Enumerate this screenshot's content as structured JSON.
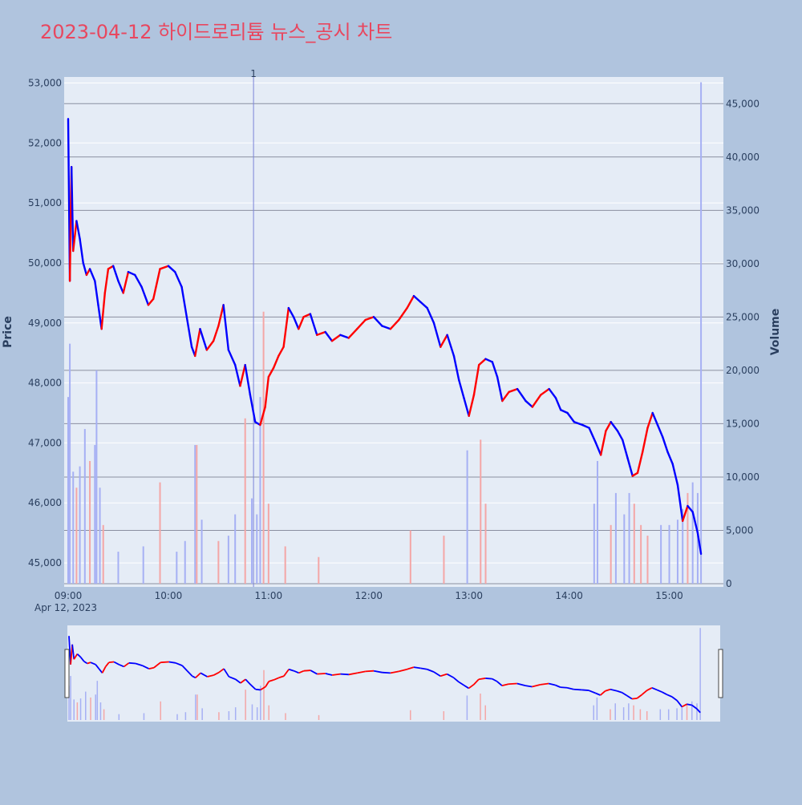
{
  "chart": {
    "title": "2023-04-12 하이드로리튬 뉴스_공시 차트",
    "title_color": "#e8475f",
    "paper_bg": "#b0c4de",
    "plot_bg": "#e5ecf6",
    "up_color": "#ff0000",
    "down_color": "#0000ff",
    "vol_up_color": "#f4a6a6",
    "vol_down_color": "#a6b0f4"
  },
  "chart_data": {
    "type": "candlestick",
    "title": "2023-04-12 하이드로리튬 뉴스_공시 차트",
    "xlabel": "",
    "date_label": "Apr 12, 2023",
    "x_ticks": [
      "09:00",
      "10:00",
      "11:00",
      "12:00",
      "13:00",
      "14:00",
      "15:00"
    ],
    "x_range": [
      "09:00",
      "15:30"
    ],
    "price_axis": {
      "title": "Price",
      "ticks": [
        "45,000",
        "46,000",
        "47,000",
        "48,000",
        "49,000",
        "50,000",
        "51,000",
        "52,000",
        "53,000"
      ],
      "tick_values": [
        45000,
        46000,
        47000,
        48000,
        49000,
        50000,
        51000,
        52000,
        53000
      ],
      "range": [
        44600,
        53100
      ]
    },
    "volume_axis": {
      "title": "Volume",
      "ticks": [
        "0",
        "5,000",
        "10,000",
        "15,000",
        "20,000",
        "25,000",
        "30,000",
        "35,000",
        "40,000",
        "45,000"
      ],
      "tick_values": [
        0,
        5000,
        10000,
        15000,
        20000,
        25000,
        30000,
        35000,
        40000,
        45000
      ],
      "range": [
        0,
        47500
      ]
    },
    "annotation": {
      "label": "1",
      "time": "10:51"
    },
    "price_path": [
      [
        "09:00",
        52400
      ],
      [
        "09:01",
        49700
      ],
      [
        "09:02",
        51600
      ],
      [
        "09:03",
        50200
      ],
      [
        "09:05",
        50700
      ],
      [
        "09:07",
        50400
      ],
      [
        "09:09",
        50000
      ],
      [
        "09:11",
        49800
      ],
      [
        "09:13",
        49900
      ],
      [
        "09:16",
        49700
      ],
      [
        "09:18",
        49300
      ],
      [
        "09:20",
        48900
      ],
      [
        "09:22",
        49500
      ],
      [
        "09:24",
        49900
      ],
      [
        "09:27",
        49950
      ],
      [
        "09:30",
        49700
      ],
      [
        "09:33",
        49500
      ],
      [
        "09:36",
        49850
      ],
      [
        "09:40",
        49800
      ],
      [
        "09:44",
        49600
      ],
      [
        "09:48",
        49300
      ],
      [
        "09:51",
        49400
      ],
      [
        "09:55",
        49900
      ],
      [
        "10:00",
        49950
      ],
      [
        "10:04",
        49850
      ],
      [
        "10:08",
        49600
      ],
      [
        "10:11",
        49100
      ],
      [
        "10:14",
        48600
      ],
      [
        "10:16",
        48450
      ],
      [
        "10:19",
        48900
      ],
      [
        "10:23",
        48550
      ],
      [
        "10:27",
        48700
      ],
      [
        "10:30",
        48950
      ],
      [
        "10:33",
        49300
      ],
      [
        "10:36",
        48550
      ],
      [
        "10:40",
        48300
      ],
      [
        "10:43",
        47950
      ],
      [
        "10:46",
        48300
      ],
      [
        "10:49",
        47800
      ],
      [
        "10:52",
        47350
      ],
      [
        "10:55",
        47300
      ],
      [
        "10:58",
        47600
      ],
      [
        "11:00",
        48100
      ],
      [
        "11:03",
        48250
      ],
      [
        "11:06",
        48450
      ],
      [
        "11:09",
        48600
      ],
      [
        "11:12",
        49250
      ],
      [
        "11:15",
        49100
      ],
      [
        "11:18",
        48900
      ],
      [
        "11:21",
        49100
      ],
      [
        "11:25",
        49150
      ],
      [
        "11:29",
        48800
      ],
      [
        "11:34",
        48850
      ],
      [
        "11:38",
        48700
      ],
      [
        "11:43",
        48800
      ],
      [
        "11:48",
        48750
      ],
      [
        "11:53",
        48900
      ],
      [
        "11:58",
        49050
      ],
      [
        "12:03",
        49100
      ],
      [
        "12:08",
        48950
      ],
      [
        "12:13",
        48900
      ],
      [
        "12:18",
        49050
      ],
      [
        "12:23",
        49250
      ],
      [
        "12:27",
        49450
      ],
      [
        "12:31",
        49350
      ],
      [
        "12:35",
        49250
      ],
      [
        "12:39",
        49000
      ],
      [
        "12:43",
        48600
      ],
      [
        "12:47",
        48800
      ],
      [
        "12:51",
        48450
      ],
      [
        "12:54",
        48050
      ],
      [
        "12:57",
        47750
      ],
      [
        "13:00",
        47450
      ],
      [
        "13:03",
        47800
      ],
      [
        "13:06",
        48300
      ],
      [
        "13:10",
        48400
      ],
      [
        "13:14",
        48350
      ],
      [
        "13:17",
        48100
      ],
      [
        "13:20",
        47700
      ],
      [
        "13:24",
        47850
      ],
      [
        "13:29",
        47900
      ],
      [
        "13:34",
        47700
      ],
      [
        "13:38",
        47600
      ],
      [
        "13:43",
        47800
      ],
      [
        "13:48",
        47900
      ],
      [
        "13:52",
        47750
      ],
      [
        "13:55",
        47550
      ],
      [
        "13:59",
        47500
      ],
      [
        "14:03",
        47350
      ],
      [
        "14:08",
        47300
      ],
      [
        "14:12",
        47250
      ],
      [
        "14:16",
        47000
      ],
      [
        "14:19",
        46800
      ],
      [
        "14:22",
        47200
      ],
      [
        "14:25",
        47350
      ],
      [
        "14:29",
        47200
      ],
      [
        "14:32",
        47050
      ],
      [
        "14:35",
        46750
      ],
      [
        "14:38",
        46450
      ],
      [
        "14:41",
        46500
      ],
      [
        "14:44",
        46850
      ],
      [
        "14:47",
        47250
      ],
      [
        "14:50",
        47500
      ],
      [
        "14:53",
        47300
      ],
      [
        "14:56",
        47100
      ],
      [
        "14:59",
        46850
      ],
      [
        "15:02",
        46650
      ],
      [
        "15:05",
        46300
      ],
      [
        "15:08",
        45700
      ],
      [
        "15:11",
        45950
      ],
      [
        "15:14",
        45850
      ],
      [
        "15:17",
        45500
      ],
      [
        "15:19",
        45150
      ]
    ],
    "volume_spikes": [
      [
        "09:00",
        17500
      ],
      [
        "09:01",
        22500
      ],
      [
        "09:03",
        10500
      ],
      [
        "09:05",
        9000
      ],
      [
        "09:07",
        11000
      ],
      [
        "09:10",
        14500
      ],
      [
        "09:13",
        11500
      ],
      [
        "09:16",
        13000
      ],
      [
        "09:17",
        20000
      ],
      [
        "09:19",
        9000
      ],
      [
        "09:21",
        5500
      ],
      [
        "09:30",
        3000
      ],
      [
        "09:45",
        3500
      ],
      [
        "09:55",
        9500
      ],
      [
        "10:05",
        3000
      ],
      [
        "10:10",
        4000
      ],
      [
        "10:16",
        13000
      ],
      [
        "10:17",
        13000
      ],
      [
        "10:20",
        6000
      ],
      [
        "10:30",
        4000
      ],
      [
        "10:36",
        4500
      ],
      [
        "10:40",
        6500
      ],
      [
        "10:46",
        15500
      ],
      [
        "10:50",
        8000
      ],
      [
        "10:53",
        6500
      ],
      [
        "10:55",
        17500
      ],
      [
        "10:57",
        25500
      ],
      [
        "11:00",
        7500
      ],
      [
        "11:10",
        3500
      ],
      [
        "11:30",
        2500
      ],
      [
        "12:25",
        5000
      ],
      [
        "12:45",
        4500
      ],
      [
        "12:59",
        12500
      ],
      [
        "13:07",
        13500
      ],
      [
        "13:10",
        7500
      ],
      [
        "14:15",
        7500
      ],
      [
        "14:17",
        11500
      ],
      [
        "14:25",
        5500
      ],
      [
        "14:28",
        8500
      ],
      [
        "14:33",
        6500
      ],
      [
        "14:36",
        8500
      ],
      [
        "14:39",
        7500
      ],
      [
        "14:43",
        5500
      ],
      [
        "14:47",
        4500
      ],
      [
        "14:55",
        5500
      ],
      [
        "15:00",
        5500
      ],
      [
        "15:05",
        6000
      ],
      [
        "15:08",
        7000
      ],
      [
        "15:11",
        8500
      ],
      [
        "15:14",
        9500
      ],
      [
        "15:17",
        8500
      ],
      [
        "15:19",
        47000
      ]
    ]
  }
}
